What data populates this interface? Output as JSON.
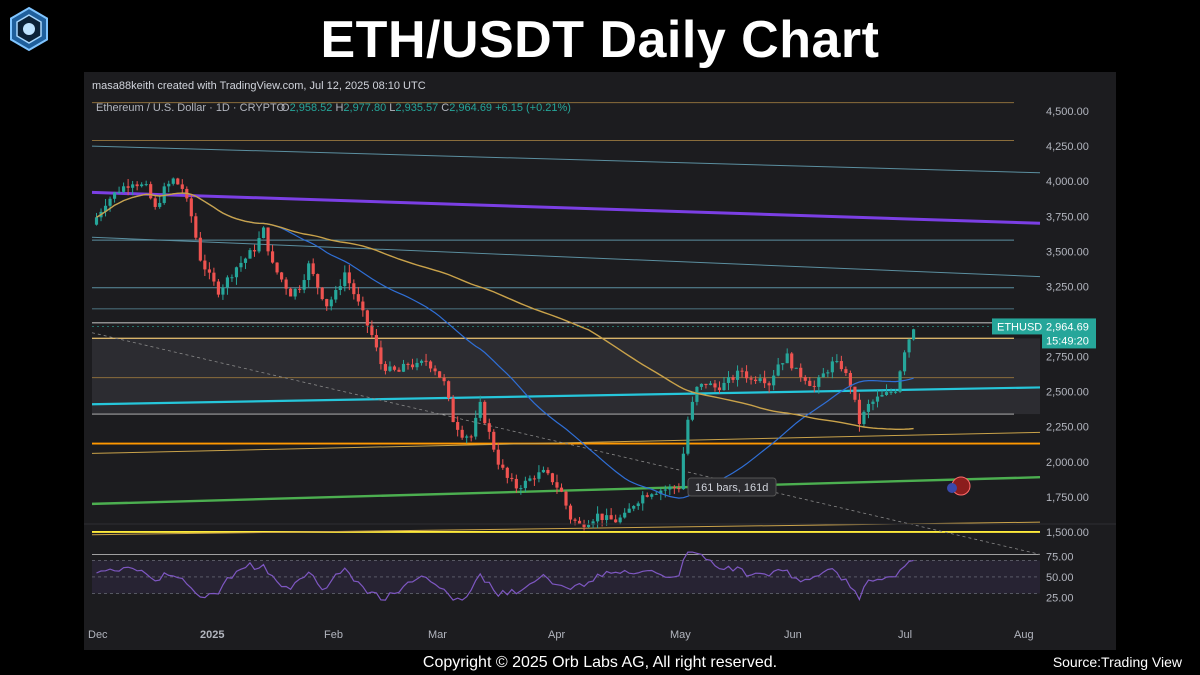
{
  "header": {
    "title": "ETH/USDT Daily Chart"
  },
  "tv": {
    "created_by": "masa88keith created with TradingView.com, Jul 12, 2025 08:10 UTC",
    "symbol_line": "Ethereum / U.S. Dollar · 1D · CRYPTO",
    "ohlc": {
      "o_label": "O",
      "o": "2,958.52",
      "h_label": "H",
      "h": "2,977.80",
      "l_label": "L",
      "l": "2,935.57",
      "c_label": "C",
      "c": "2,964.69",
      "change": "+6.15 (+0.21%)"
    },
    "ticker_tag": "ETHUSD",
    "price_tag": "2,964.69",
    "countdown_tag": "15:49:20",
    "measure_label": "161 bars, 161d",
    "brand": "TradingView"
  },
  "footer": {
    "copyright": "Copyright © 2025 Orb Labs AG, All right reserved.",
    "source": "Source:Trading View"
  },
  "colors": {
    "bg": "#1c1c1f",
    "up": "#26a69a",
    "down": "#ef5350",
    "rsi": "#7e57c2",
    "ma_fast": "#2f6fd6",
    "ma_slow": "#c9a24a"
  },
  "chart_data": {
    "type": "candlestick",
    "title": "ETH/USDT Daily Chart",
    "y_ticks": [
      "4,500.00",
      "4,250.00",
      "4,000.00",
      "3,750.00",
      "3,500.00",
      "3,250.00",
      "2,750.00",
      "2,500.00",
      "2,250.00",
      "2,000.00",
      "1,750.00",
      "1,500.00"
    ],
    "x_ticks": [
      "Dec",
      "2025",
      "Feb",
      "Mar",
      "Apr",
      "May",
      "Jun",
      "Jul",
      "Aug"
    ],
    "ylim": [
      1300,
      4600
    ],
    "last_price": 2964.69,
    "price_path": [
      [
        0,
        3690
      ],
      [
        3,
        3850
      ],
      [
        6,
        3940
      ],
      [
        9,
        4000
      ],
      [
        12,
        3950
      ],
      [
        14,
        3800
      ],
      [
        16,
        3940
      ],
      [
        18,
        4010
      ],
      [
        20,
        3950
      ],
      [
        22,
        3750
      ],
      [
        24,
        3450
      ],
      [
        26,
        3320
      ],
      [
        28,
        3220
      ],
      [
        30,
        3300
      ],
      [
        32,
        3390
      ],
      [
        34,
        3450
      ],
      [
        36,
        3520
      ],
      [
        38,
        3650
      ],
      [
        40,
        3400
      ],
      [
        42,
        3300
      ],
      [
        44,
        3200
      ],
      [
        46,
        3250
      ],
      [
        48,
        3400
      ],
      [
        50,
        3250
      ],
      [
        52,
        3120
      ],
      [
        54,
        3200
      ],
      [
        56,
        3350
      ],
      [
        58,
        3200
      ],
      [
        60,
        3050
      ],
      [
        62,
        2900
      ],
      [
        64,
        2700
      ],
      [
        66,
        2650
      ],
      [
        68,
        2640
      ],
      [
        70,
        2700
      ],
      [
        72,
        2680
      ],
      [
        74,
        2720
      ],
      [
        76,
        2660
      ],
      [
        78,
        2560
      ],
      [
        80,
        2300
      ],
      [
        82,
        2200
      ],
      [
        84,
        2180
      ],
      [
        86,
        2400
      ],
      [
        88,
        2200
      ],
      [
        90,
        2000
      ],
      [
        92,
        1880
      ],
      [
        94,
        1820
      ],
      [
        96,
        1850
      ],
      [
        98,
        1900
      ],
      [
        100,
        1920
      ],
      [
        102,
        1870
      ],
      [
        104,
        1780
      ],
      [
        106,
        1600
      ],
      [
        108,
        1550
      ],
      [
        110,
        1580
      ],
      [
        112,
        1620
      ],
      [
        114,
        1590
      ],
      [
        116,
        1580
      ],
      [
        118,
        1610
      ],
      [
        120,
        1700
      ],
      [
        122,
        1760
      ],
      [
        124,
        1790
      ],
      [
        126,
        1800
      ],
      [
        128,
        1810
      ],
      [
        130,
        1820
      ],
      [
        132,
        2300
      ],
      [
        134,
        2520
      ],
      [
        136,
        2560
      ],
      [
        138,
        2530
      ],
      [
        140,
        2550
      ],
      [
        142,
        2600
      ],
      [
        144,
        2650
      ],
      [
        146,
        2580
      ],
      [
        148,
        2620
      ],
      [
        150,
        2560
      ],
      [
        152,
        2700
      ],
      [
        154,
        2750
      ],
      [
        156,
        2640
      ],
      [
        158,
        2600
      ],
      [
        160,
        2530
      ],
      [
        162,
        2620
      ],
      [
        164,
        2700
      ],
      [
        166,
        2680
      ],
      [
        168,
        2550
      ],
      [
        170,
        2280
      ],
      [
        172,
        2400
      ],
      [
        174,
        2450
      ],
      [
        176,
        2480
      ],
      [
        178,
        2520
      ],
      [
        180,
        2800
      ],
      [
        182,
        2964
      ]
    ],
    "rsi": {
      "levels": [
        75.0,
        50.0,
        25.0
      ],
      "overbought": 70,
      "oversold": 30
    }
  }
}
